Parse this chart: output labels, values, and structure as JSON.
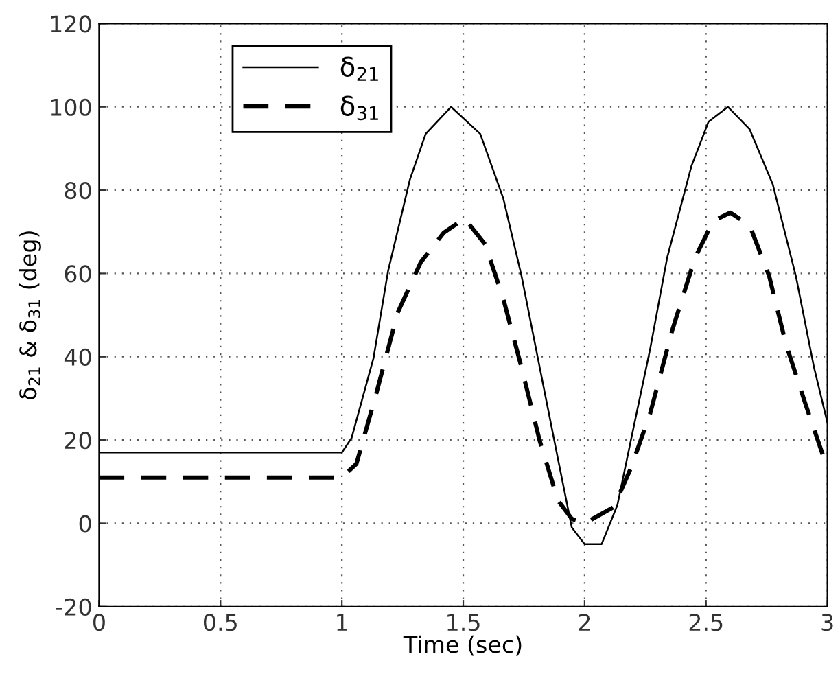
{
  "chart_data": {
    "type": "line",
    "xlabel": "Time (sec)",
    "ylabel": "δ$_{21}$ & δ$_{31}$ (deg)",
    "xlim": [
      0,
      3
    ],
    "xticks": [
      0,
      0.5,
      1,
      1.5,
      2,
      2.5,
      3
    ],
    "ylim": [
      -20,
      120
    ],
    "yticks": [
      -20,
      0,
      20,
      40,
      60,
      80,
      100,
      120
    ],
    "grid": true,
    "legend": "top left",
    "marker": "none",
    "series": [
      {
        "name": "δ$_{21}$",
        "color": "#000000",
        "line_style": "solid",
        "x": [
          0,
          1.0,
          1.04,
          1.13,
          1.19,
          1.28,
          1.345,
          1.45,
          1.57,
          1.665,
          1.74,
          1.815,
          1.89,
          1.947,
          2.0,
          2.07,
          2.135,
          2.19,
          2.27,
          2.34,
          2.44,
          2.51,
          2.59,
          2.68,
          2.775,
          2.87,
          2.945,
          3.0
        ],
        "values": [
          17,
          17,
          20.5,
          39.6,
          60.5,
          82.5,
          93.5,
          100,
          93.5,
          78,
          59.4,
          37.4,
          15.5,
          -1,
          -5,
          -5,
          4.4,
          19.8,
          41.9,
          63.8,
          85.8,
          96.4,
          100,
          94.6,
          81.4,
          59.4,
          37.4,
          24.2
        ]
      },
      {
        "name": "δ$_{31}$",
        "color": "#000000",
        "line_style": "dashed",
        "x": [
          0,
          1.0,
          1.06,
          1.14,
          1.23,
          1.325,
          1.42,
          1.505,
          1.59,
          1.665,
          1.74,
          1.815,
          1.89,
          1.947,
          2.0,
          2.12,
          2.19,
          2.27,
          2.36,
          2.455,
          2.53,
          2.6,
          2.68,
          2.76,
          2.83,
          2.91,
          3.0
        ],
        "values": [
          11,
          11,
          14.3,
          30.8,
          50.6,
          62.7,
          69.8,
          73.2,
          67,
          53.9,
          37.4,
          19.8,
          5.5,
          1.1,
          0,
          3.9,
          13.2,
          26.4,
          46.2,
          63.8,
          72.6,
          74.6,
          71.5,
          59.4,
          42.9,
          28.6,
          13.2
        ]
      }
    ]
  }
}
